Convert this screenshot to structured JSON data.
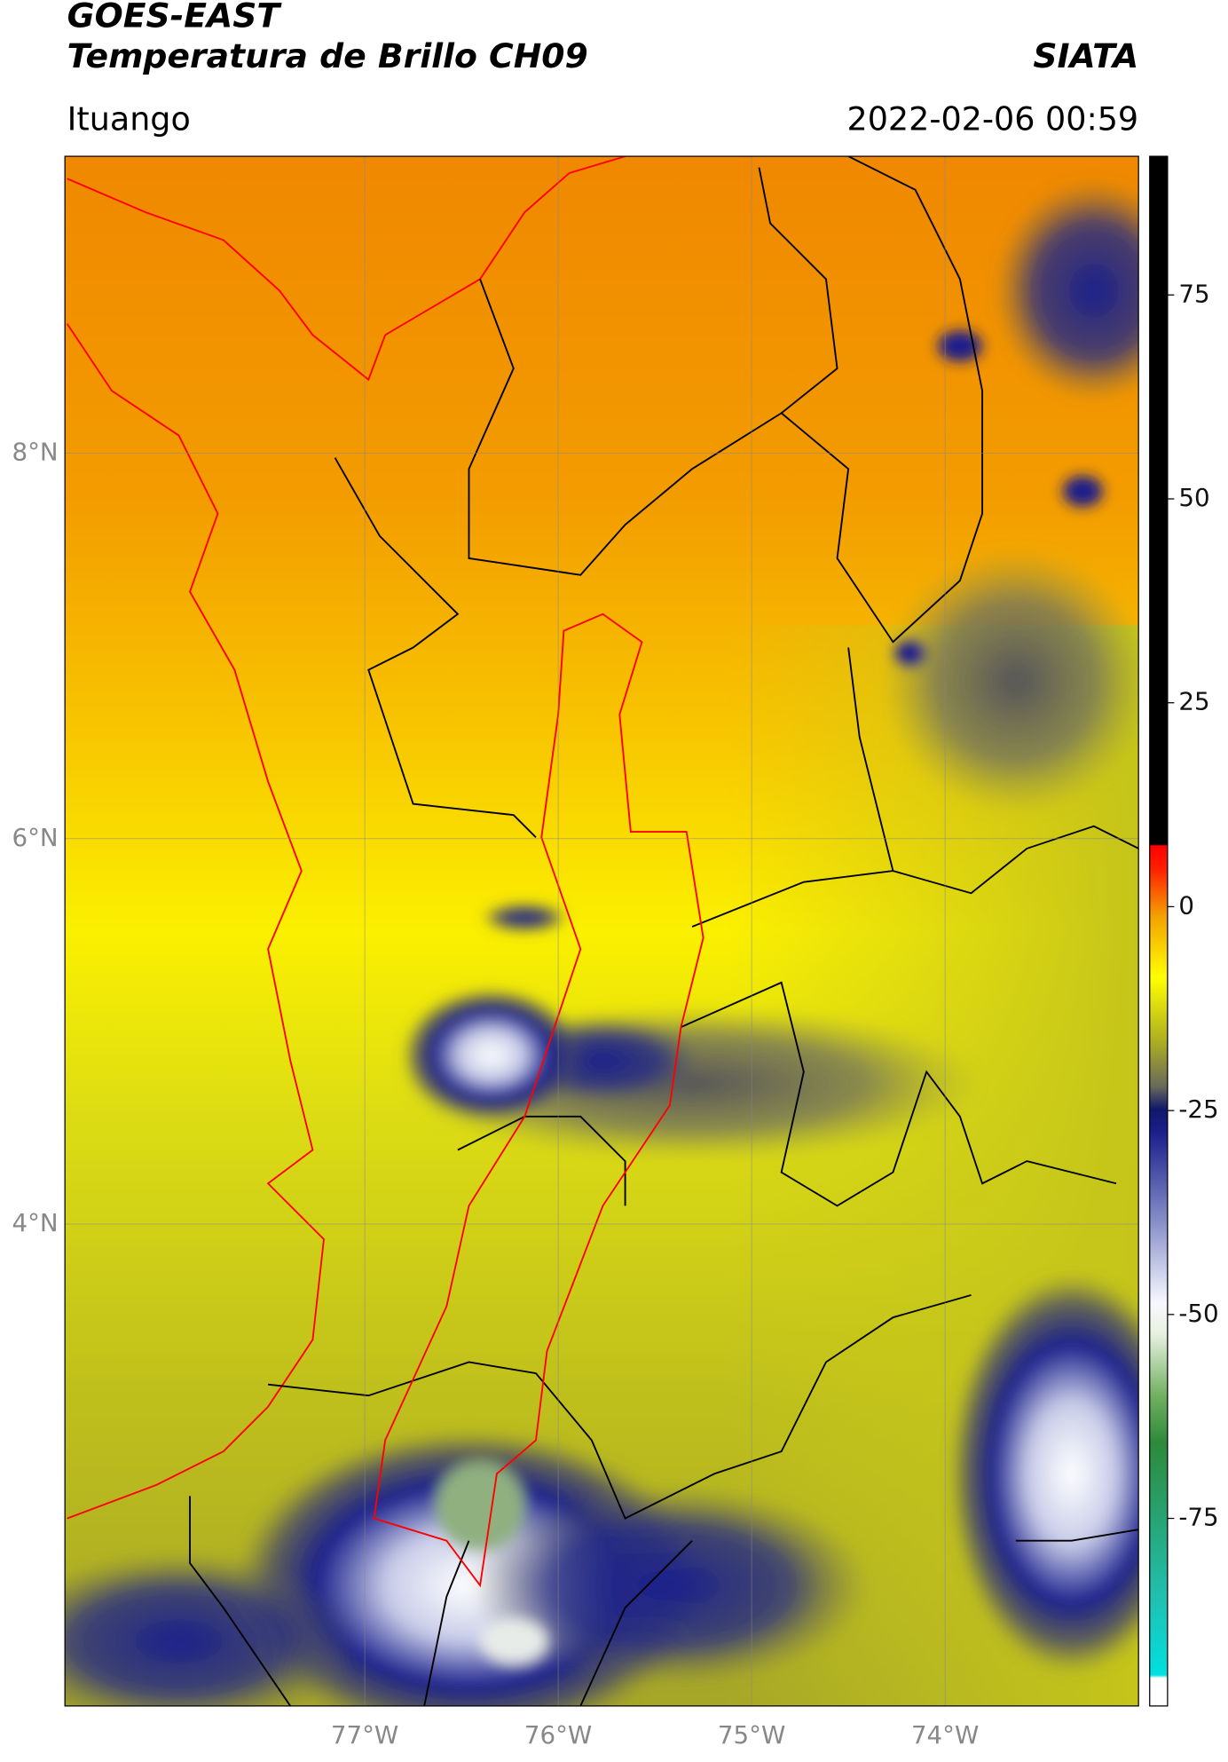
{
  "chart_data": {
    "type": "map",
    "title": "GOES-EAST",
    "subtitle": "Temperatura de Brillo CH09",
    "source": "SIATA",
    "region": "Ituango",
    "timestamp": "2022-02-06 00:59",
    "xlim": [
      -78.55,
      -73.0
    ],
    "ylim": [
      1.5,
      9.54
    ],
    "xticks": [
      {
        "value": -77,
        "label": "77°W"
      },
      {
        "value": -76,
        "label": "76°W"
      },
      {
        "value": -75,
        "label": "75°W"
      },
      {
        "value": -74,
        "label": "74°W"
      }
    ],
    "yticks": [
      {
        "value": 8,
        "label": "8°N"
      },
      {
        "value": 6,
        "label": "6°N"
      },
      {
        "value": 4,
        "label": "4°N"
      }
    ],
    "grid": true,
    "colorbar": {
      "lim": [
        -98,
        92
      ],
      "ticks": [
        75,
        50,
        25,
        0,
        -25,
        -50,
        -75
      ]
    }
  }
}
